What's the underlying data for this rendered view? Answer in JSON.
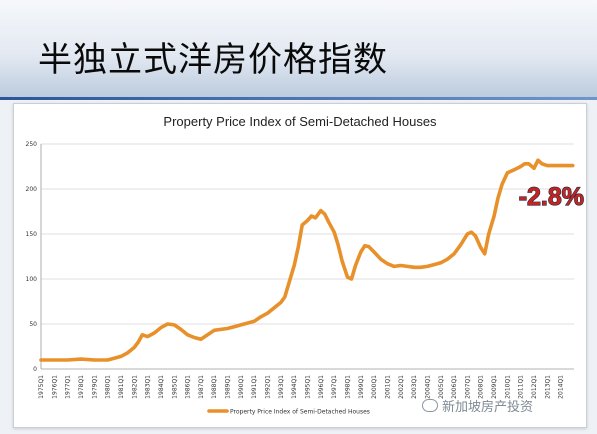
{
  "slide": {
    "title": "半独立式洋房价格指数"
  },
  "watermark": "新加坡房产投资",
  "colors": {
    "series": "#E8902A",
    "annotation_fill": "#C8241E",
    "annotation_outline": "#1E2A47",
    "header_accent": "#2A5699"
  },
  "chart_data": {
    "type": "line",
    "title": "Property Price Index of Semi-Detached Houses",
    "xlabel": "",
    "ylabel": "",
    "ylim": [
      0,
      250
    ],
    "yticks": [
      0,
      50,
      100,
      150,
      200,
      250
    ],
    "grid": true,
    "legend_position": "bottom-left",
    "x_tick_labels": [
      "1975Q1",
      "1976Q1",
      "1977Q1",
      "1978Q1",
      "1979Q1",
      "1980Q1",
      "1981Q1",
      "1982Q1",
      "1983Q1",
      "1984Q1",
      "1985Q1",
      "1986Q1",
      "1987Q1",
      "1988Q1",
      "1989Q1",
      "1990Q1",
      "1991Q1",
      "1992Q1",
      "1993Q1",
      "1994Q1",
      "1995Q1",
      "1996Q1",
      "1997Q1",
      "1998Q1",
      "1999Q1",
      "2000Q1",
      "2001Q1",
      "2002Q1",
      "2003Q1",
      "2004Q1",
      "2005Q1",
      "2006Q1",
      "2007Q1",
      "2008Q1",
      "2009Q1",
      "2010Q1",
      "2011Q1",
      "2012Q1",
      "2013Q1",
      "2014Q1"
    ],
    "series": [
      {
        "name": "Property Price Index of Semi-Detached Houses",
        "x": [
          1975.0,
          1976.0,
          1977.0,
          1978.0,
          1979.0,
          1979.5,
          1980.0,
          1980.5,
          1981.0,
          1981.5,
          1982.0,
          1982.3,
          1982.6,
          1983.0,
          1983.5,
          1984.0,
          1984.5,
          1985.0,
          1985.5,
          1986.0,
          1986.5,
          1987.0,
          1987.5,
          1988.0,
          1988.5,
          1989.0,
          1989.5,
          1990.0,
          1990.5,
          1991.0,
          1991.5,
          1992.0,
          1992.5,
          1993.0,
          1993.3,
          1993.6,
          1994.0,
          1994.3,
          1994.6,
          1995.0,
          1995.3,
          1995.6,
          1996.0,
          1996.3,
          1996.6,
          1997.0,
          1997.3,
          1997.6,
          1998.0,
          1998.3,
          1998.6,
          1999.0,
          1999.3,
          1999.6,
          2000.0,
          2000.5,
          2001.0,
          2001.5,
          2002.0,
          2002.5,
          2003.0,
          2003.5,
          2004.0,
          2004.5,
          2005.0,
          2005.5,
          2006.0,
          2006.5,
          2007.0,
          2007.3,
          2007.6,
          2008.0,
          2008.3,
          2008.6,
          2009.0,
          2009.3,
          2009.6,
          2010.0,
          2010.3,
          2010.6,
          2011.0,
          2011.3,
          2011.6,
          2012.0,
          2012.3,
          2012.6,
          2013.0,
          2013.3,
          2013.6,
          2014.0,
          2014.3,
          2014.6,
          2014.9
        ],
        "values": [
          10,
          10,
          10,
          11,
          10,
          10,
          10,
          12,
          14,
          18,
          24,
          30,
          38,
          36,
          40,
          46,
          50,
          49,
          44,
          38,
          35,
          33,
          38,
          43,
          44,
          45,
          47,
          49,
          51,
          53,
          58,
          62,
          68,
          74,
          80,
          95,
          115,
          135,
          160,
          165,
          170,
          168,
          176,
          172,
          163,
          152,
          138,
          120,
          102,
          100,
          115,
          130,
          137,
          136,
          130,
          122,
          117,
          114,
          115,
          114,
          113,
          113,
          114,
          116,
          118,
          122,
          128,
          138,
          150,
          152,
          148,
          135,
          128,
          150,
          170,
          190,
          205,
          218,
          220,
          222,
          225,
          228,
          228,
          223,
          232,
          228,
          226,
          226,
          226,
          226,
          226,
          226,
          226
        ]
      }
    ],
    "annotations": [
      {
        "text": "-2.8%",
        "x": 2013.3,
        "y": 182
      }
    ]
  }
}
